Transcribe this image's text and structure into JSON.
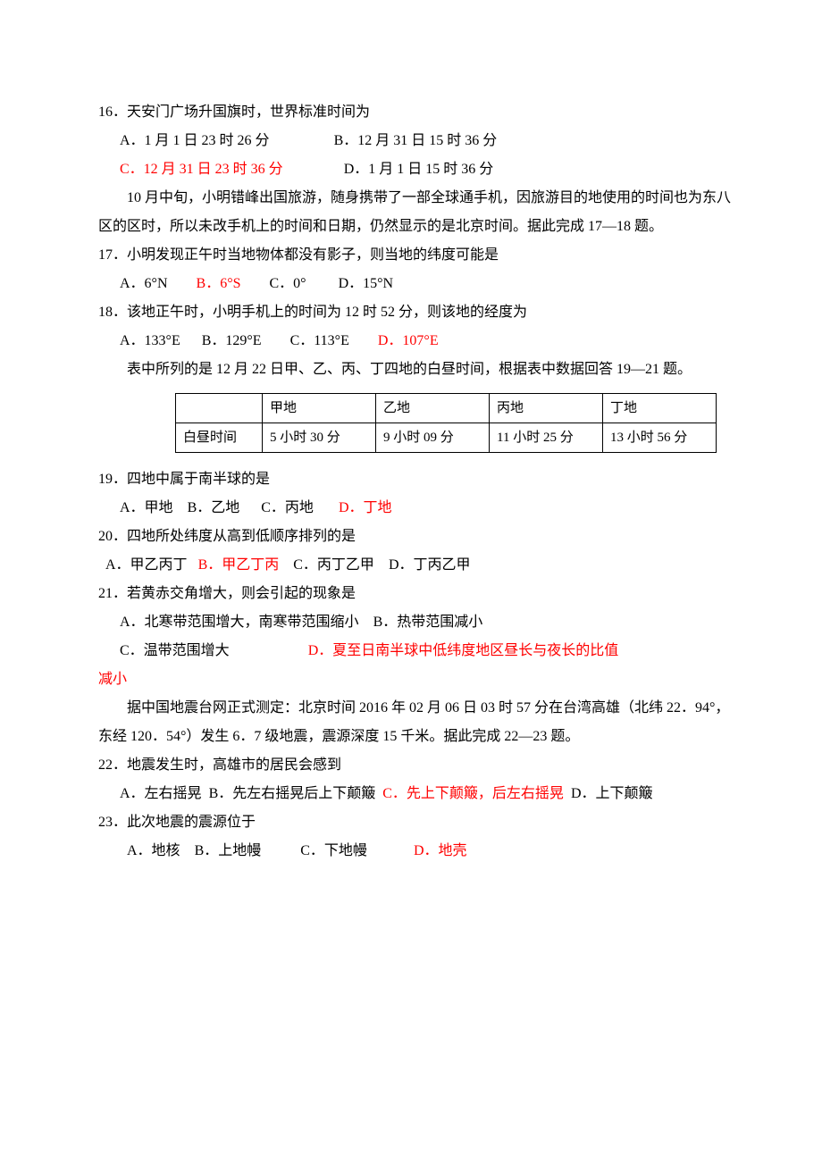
{
  "q16": {
    "stem": "16．天安门广场升国旗时，世界标准时间为",
    "A": "A．1 月 1 日 23 时 26 分",
    "B": "B．12 月 31 日 15 时 36 分",
    "C": "C．12 月 31 日 23 时 36 分",
    "D": "D．1 月 1 日 15 时 36 分"
  },
  "ctx17": "10 月中旬，小明错峰出国旅游，随身携带了一部全球通手机，因旅游目的地使用的时间也为东八区的区时，所以未改手机上的时间和日期，仍然显示的是北京时间。据此完成 17—18 题。",
  "q17": {
    "stem": "17．小明发现正午时当地物体都没有影子，则当地的纬度可能是",
    "A": "A．6°N",
    "B": "B．6°S",
    "C": "C．0°",
    "D": "D．15°N"
  },
  "q18": {
    "stem": "18．该地正午时，小明手机上的时间为 12 时 52 分，则该地的经度为",
    "A": "A．133°E",
    "B": "B．129°E",
    "C": "C．113°E",
    "D": "D．107°E"
  },
  "ctx19": "表中所列的是 12 月 22 日甲、乙、丙、丁四地的白昼时间，根据表中数据回答 19—21 题。",
  "table": {
    "header": [
      "",
      "甲地",
      "乙地",
      "丙地",
      "丁地"
    ],
    "rowlabel": "白昼时间",
    "row": [
      "5 小时 30 分",
      "9 小时 09 分",
      "11 小时 25 分",
      "13 小时 56 分"
    ]
  },
  "q19": {
    "stem": "19．四地中属于南半球的是",
    "A": "A．甲地",
    "B": "B．乙地",
    "C": "C．丙地",
    "D": "D．丁地"
  },
  "q20": {
    "stem": "20．四地所处纬度从高到低顺序排列的是",
    "A": "A．甲乙丙丁",
    "B": "B．甲乙丁丙",
    "C": "C．丙丁乙甲",
    "D": "D．丁丙乙甲"
  },
  "q21": {
    "stem": "21．若黄赤交角增大，则会引起的现象是",
    "A": "A．北寒带范围增大，南寒带范围缩小",
    "B": "B．热带范围减小",
    "C": "C．温带范围增大",
    "D": "D．夏至日南半球中低纬度地区昼长与夜长的比值减小",
    "Dtail": "减小"
  },
  "ctx22": "据中国地震台网正式测定：北京时间 2016 年 02 月 06 日 03 时 57 分在台湾高雄（北纬 22．94°，东经 120．54°）发生 6．7 级地震，震源深度 15 千米。据此完成 22—23 题。",
  "q22": {
    "stem": "22．地震发生时，高雄市的居民会感到",
    "A": "A．左右摇晃",
    "B": "B．先左右摇晃后上下颠簸",
    "C": "C．先上下颠簸，后左右摇晃",
    "D": "D．上下颠簸"
  },
  "q23": {
    "stem": "23．此次地震的震源位于",
    "A": "A．地核",
    "B": "B．上地幔",
    "C": "C．下地幔",
    "D": "D．地壳"
  }
}
